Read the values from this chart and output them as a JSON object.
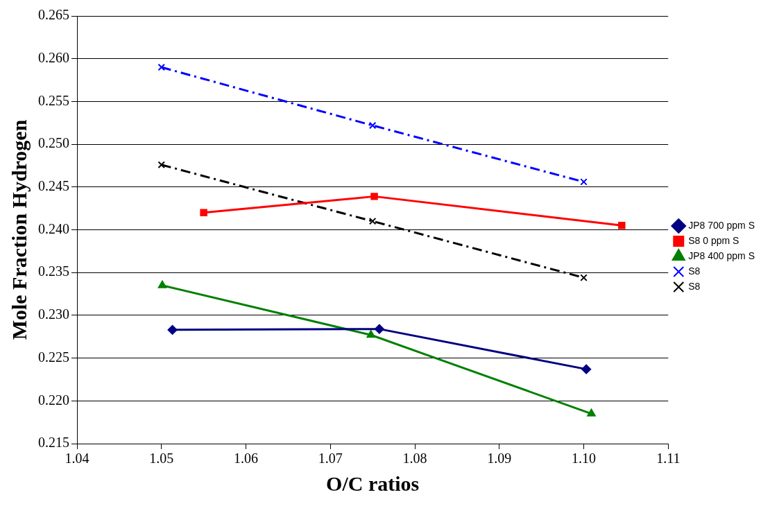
{
  "chart_data": {
    "type": "line",
    "xlabel": "O/C ratios",
    "ylabel": "Mole Fraction Hydrogen",
    "xlim": [
      1.04,
      1.11
    ],
    "xticks": [
      {
        "value": 1.04,
        "label": "1.04"
      },
      {
        "value": 1.05,
        "label": "1.05"
      },
      {
        "value": 1.06,
        "label": "1.06"
      },
      {
        "value": 1.07,
        "label": "1.07"
      },
      {
        "value": 1.08,
        "label": "1.08"
      },
      {
        "value": 1.09,
        "label": "1.09"
      },
      {
        "value": 1.1,
        "label": "1.10"
      },
      {
        "value": 1.11,
        "label": "1.11"
      }
    ],
    "ylim": [
      0.215,
      0.265
    ],
    "yticks": [
      {
        "value": 0.215,
        "label": "0.215"
      },
      {
        "value": 0.22,
        "label": "0.220"
      },
      {
        "value": 0.225,
        "label": "0.225"
      },
      {
        "value": 0.23,
        "label": "0.230"
      },
      {
        "value": 0.235,
        "label": "0.235"
      },
      {
        "value": 0.24,
        "label": "0.240"
      },
      {
        "value": 0.245,
        "label": "0.245"
      },
      {
        "value": 0.25,
        "label": "0.250"
      },
      {
        "value": 0.255,
        "label": "0.255"
      },
      {
        "value": 0.26,
        "label": "0.260"
      },
      {
        "value": 0.265,
        "label": "0.265"
      }
    ],
    "grid": "y",
    "legend": "right",
    "series": [
      {
        "name": "JP8 700 ppm S",
        "color": "#000080",
        "marker": "diamond",
        "line_style": "solid",
        "x": [
          1.0513,
          1.0758,
          1.1003
        ],
        "values": [
          0.2283,
          0.2284,
          0.2237
        ]
      },
      {
        "name": "S8 0 ppm S",
        "color": "#ff0000",
        "marker": "square",
        "line_style": "solid",
        "x": [
          1.055,
          1.0752,
          1.1045
        ],
        "values": [
          0.242,
          0.2439,
          0.2405
        ]
      },
      {
        "name": "JP8 400 ppm S",
        "color": "#008000",
        "marker": "triangle",
        "line_style": "solid",
        "x": [
          1.0501,
          1.0748,
          1.1009
        ],
        "values": [
          0.2335,
          0.2277,
          0.2185
        ]
      },
      {
        "name": "S8",
        "color": "#0000ff",
        "marker": "cross",
        "line_style": "dashed",
        "x": [
          1.05,
          1.075,
          1.1
        ],
        "values": [
          0.259,
          0.2522,
          0.2456
        ]
      },
      {
        "name": "S8",
        "color": "#000000",
        "marker": "cross",
        "line_style": "dashed",
        "x": [
          1.05,
          1.075,
          1.1
        ],
        "values": [
          0.2476,
          0.241,
          0.2344
        ]
      }
    ]
  }
}
